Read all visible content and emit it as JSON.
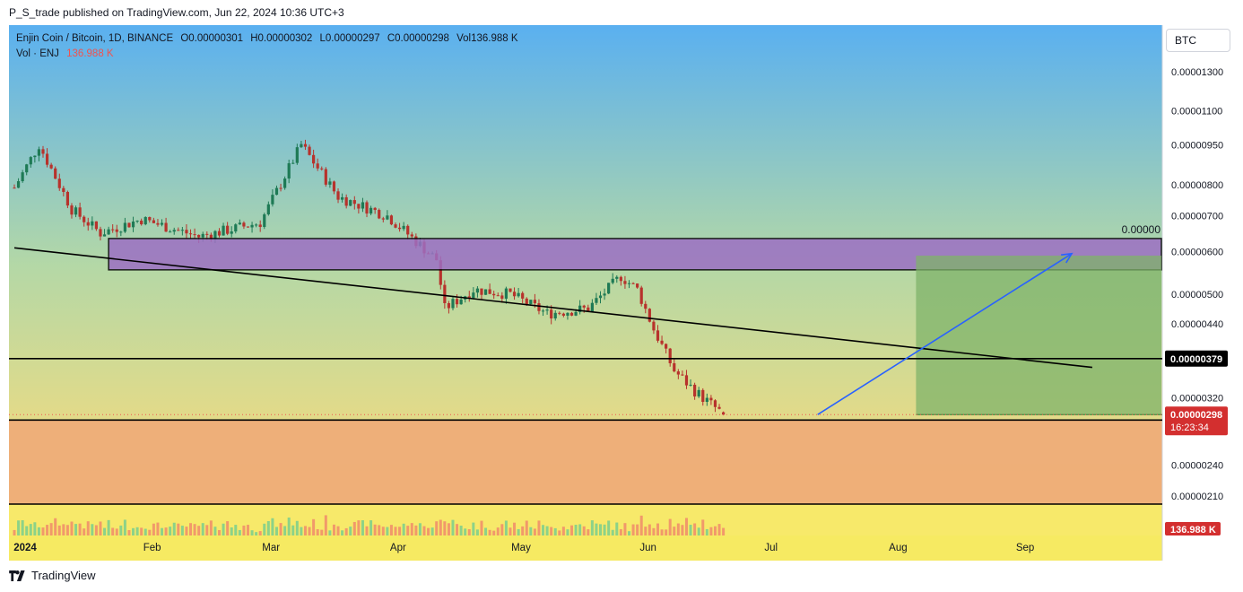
{
  "header": {
    "published": "P_S_trade published on TradingView.com, Jun 22, 2024 10:36 UTC+3"
  },
  "legend": {
    "symbol": "Enjin Coin / Bitcoin, 1D, BINANCE",
    "open": "O0.00000301",
    "high": "H0.00000302",
    "low": "L0.00000297",
    "close": "C0.00000298",
    "vol": "Vol136.988 K",
    "vol_label": "Vol · ENJ",
    "vol_value": "136.988 K"
  },
  "currency_button": "BTC",
  "footer": {
    "brand": "TradingView"
  },
  "price_tags": {
    "level": "0.00000379",
    "last": "0.00000298",
    "countdown": "16:23:34",
    "volume": "136.988 K",
    "position_label": "0.00000"
  },
  "colors": {
    "up": "#26a69a",
    "down": "#ef5350",
    "zone": "#9c6fc4",
    "arrow": "#2962ff",
    "target_box": "#7fb36a"
  },
  "chart_data": {
    "type": "candlestick",
    "y_scale": "log",
    "y_ticks": [
      "0.00001300",
      "0.00001100",
      "0.00000950",
      "0.00000800",
      "0.00000700",
      "0.00000600",
      "0.00000500",
      "0.00000440",
      "0.00000320",
      "0.00000240",
      "0.00000210"
    ],
    "x_ticks": [
      "2024",
      "Feb",
      "Mar",
      "Apr",
      "May",
      "Jun",
      "Jul",
      "Aug",
      "Sep"
    ],
    "key_points": [
      {
        "date": "2024-01-01",
        "close": 7.9e-06
      },
      {
        "date": "2024-01-07",
        "close": 9.5e-06
      },
      {
        "date": "2024-01-15",
        "close": 7.2e-06
      },
      {
        "date": "2024-01-22",
        "close": 6.5e-06
      },
      {
        "date": "2024-02-01",
        "close": 6.9e-06
      },
      {
        "date": "2024-02-15",
        "close": 6.4e-06
      },
      {
        "date": "2024-03-01",
        "close": 6.8e-06
      },
      {
        "date": "2024-03-11",
        "close": 9.5e-06
      },
      {
        "date": "2024-03-20",
        "close": 7.6e-06
      },
      {
        "date": "2024-04-01",
        "close": 7e-06
      },
      {
        "date": "2024-04-13",
        "close": 5.8e-06
      },
      {
        "date": "2024-04-15",
        "close": 4.7e-06
      },
      {
        "date": "2024-04-22",
        "close": 5.1e-06
      },
      {
        "date": "2024-05-01",
        "close": 5e-06
      },
      {
        "date": "2024-05-10",
        "close": 4.6e-06
      },
      {
        "date": "2024-05-20",
        "close": 4.7e-06
      },
      {
        "date": "2024-05-28",
        "close": 5.4e-06
      },
      {
        "date": "2024-06-01",
        "close": 5.1e-06
      },
      {
        "date": "2024-06-05",
        "close": 4.3e-06
      },
      {
        "date": "2024-06-10",
        "close": 3.6e-06
      },
      {
        "date": "2024-06-15",
        "close": 3.3e-06
      },
      {
        "date": "2024-06-22",
        "close": 2.98e-06
      }
    ],
    "annotations": {
      "horizontal_levels": [
        3.79e-06,
        2.91e-06
      ],
      "supply_zone": {
        "from": "2024-01-24",
        "to": "2024-09-20",
        "low": 5.55e-06,
        "high": 6.35e-06
      },
      "trendline": [
        {
          "date": "2024-01-01",
          "price": 6.1e-06
        },
        {
          "date": "2024-09-20",
          "price": 3.65e-06
        }
      ],
      "long_position": {
        "entry": 2.98e-06,
        "target": 5.9e-06,
        "from": "2024-08-08",
        "to": "2024-09-20"
      },
      "arrow": [
        {
          "date": "2024-07-15",
          "price": 2.98e-06
        },
        {
          "date": "2024-09-15",
          "price": 5.95e-06
        }
      ]
    }
  }
}
